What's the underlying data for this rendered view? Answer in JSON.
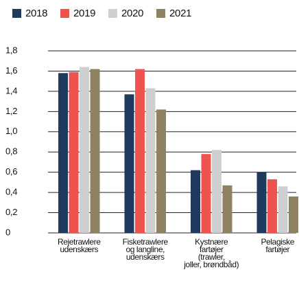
{
  "chart_data": {
    "type": "bar",
    "categories": [
      "Rejetrawlere\nudenskærs",
      "Fisketrawlere\nog langline,\nudenskærs",
      "Kystnære\nfartøjer\n(trawler,\njoller, brøndbåd)",
      "Pelagiske\nfartøjer"
    ],
    "series": [
      {
        "name": "2018",
        "color": "#1e3a5c",
        "values": [
          1.58,
          1.37,
          0.62,
          0.6
        ]
      },
      {
        "name": "2019",
        "color": "#ef5350",
        "values": [
          1.59,
          1.62,
          0.78,
          0.53
        ]
      },
      {
        "name": "2020",
        "color": "#cfcfd1",
        "values": [
          1.64,
          1.43,
          0.82,
          0.46
        ]
      },
      {
        "name": "2021",
        "color": "#8e8262",
        "values": [
          1.62,
          1.22,
          0.47,
          0.36
        ]
      }
    ],
    "ylim": [
      0,
      1.8
    ],
    "yticks": [
      0,
      {
        "value": 0.2,
        "label": "0,2"
      },
      {
        "value": 0.4,
        "label": "0,4"
      },
      {
        "value": 0.6,
        "label": "0,6"
      },
      {
        "value": 0.8,
        "label": "0,8"
      },
      {
        "value": 1.0,
        "label": "1,0"
      },
      {
        "value": 1.2,
        "label": "1,2"
      },
      {
        "value": 1.4,
        "label": "1,4"
      },
      {
        "value": 1.6,
        "label": "1,6"
      },
      {
        "value": 1.8,
        "label": "1,8"
      }
    ],
    "grid": true,
    "legend": "top"
  }
}
